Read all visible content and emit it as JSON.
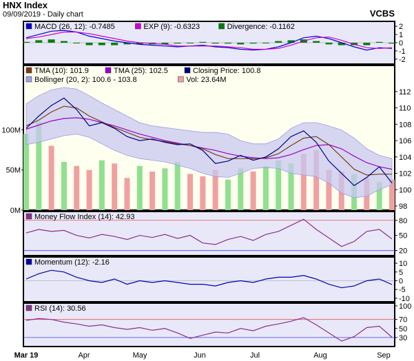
{
  "header": {
    "title": "HNX Index",
    "subtitle": "09/09/2019 - Daily chart",
    "brand": "VCBS"
  },
  "colors": {
    "tma10": "#7a3b1b",
    "tma25": "#9900cc",
    "close": "#000080",
    "bollinger_fill": "#c8c8f0",
    "bollinger_line": "#9a9ae6",
    "vol_up": "#90e090",
    "vol_down": "#f0a0a0",
    "macd": "#0000cc",
    "signal": "#cc00cc",
    "divergence": "#008000",
    "mfi": "#8b2e8b",
    "momentum": "#0000aa",
    "rsi": "#8b2e8b",
    "overbought": "#e05050",
    "oversold": "#4040e0",
    "panel_bg": "#e8e8f8",
    "price_bg": "#fffff0"
  },
  "chart_data": [
    {
      "type": "line",
      "panel": "macd",
      "legend": [
        {
          "label": "MACD (26, 12): -0.7485",
          "color": "#0000cc"
        },
        {
          "label": "EXP (9): -0.6323",
          "color": "#cc00cc"
        },
        {
          "label": "Divergence: -0.1162",
          "color": "#008000"
        }
      ],
      "yticks": [
        2,
        1,
        0,
        -1,
        -2
      ],
      "ylim": [
        -2.6,
        2.6
      ],
      "macd": [
        0.6,
        1.0,
        1.4,
        1.5,
        1.3,
        0.8,
        0.5,
        0.2,
        0.0,
        -0.2,
        -0.3,
        -0.4,
        -0.5,
        -0.4,
        -0.3,
        -0.5,
        -0.6,
        -0.8,
        -0.9,
        -0.8,
        -0.5,
        0.0,
        0.6,
        0.8,
        0.5,
        0.0,
        -0.5,
        -0.9,
        -0.6,
        -0.7
      ],
      "exp": [
        0.5,
        0.7,
        1.0,
        1.3,
        1.3,
        1.1,
        0.8,
        0.5,
        0.2,
        0.0,
        -0.1,
        -0.2,
        -0.4,
        -0.4,
        -0.4,
        -0.4,
        -0.5,
        -0.6,
        -0.8,
        -0.8,
        -0.7,
        -0.3,
        0.2,
        0.6,
        0.7,
        0.3,
        -0.2,
        -0.6,
        -0.7,
        -0.6
      ],
      "divergence": [
        0.1,
        0.3,
        0.4,
        0.2,
        0.0,
        -0.3,
        -0.3,
        -0.3,
        -0.2,
        -0.2,
        -0.2,
        -0.2,
        -0.1,
        0.0,
        0.1,
        -0.1,
        -0.1,
        -0.2,
        -0.1,
        0.0,
        0.2,
        0.3,
        0.4,
        0.2,
        -0.2,
        -0.3,
        -0.3,
        -0.3,
        0.1,
        -0.1
      ]
    },
    {
      "type": "line",
      "panel": "price",
      "legend": [
        {
          "label": "TMA (10): 101.9",
          "color": "#7a3b1b"
        },
        {
          "label": "TMA (25): 102.5",
          "color": "#9900cc"
        },
        {
          "label": "Closing Price: 100.8",
          "color": "#000080"
        },
        {
          "label": "Bollinger (20, 2): 100.6 - 103.8",
          "color": "#a0a0e8"
        },
        {
          "label": "Vol: 23.64M",
          "color": "#f0a0a0"
        }
      ],
      "yticks": [
        112,
        110,
        108,
        106,
        104,
        102,
        100,
        98
      ],
      "ylim": [
        97.5,
        113
      ],
      "vol_ticks": [
        "100M",
        "50M",
        "0M"
      ],
      "vol_max": 180,
      "close": [
        107.5,
        109,
        110.3,
        111.2,
        109.8,
        107.8,
        108.2,
        107.5,
        106.5,
        106.0,
        106.2,
        105.8,
        105.5,
        105.6,
        104.8,
        103.2,
        103.5,
        104.2,
        103.6,
        104.0,
        105.0,
        106.5,
        107.2,
        105.8,
        103.5,
        102.0,
        100.5,
        101.5,
        102.8,
        100.8
      ],
      "tma10": [
        107.8,
        108.5,
        109.5,
        110.2,
        110.0,
        109.0,
        108.3,
        107.6,
        107.0,
        106.4,
        106.1,
        105.9,
        105.6,
        105.4,
        105.0,
        104.3,
        103.8,
        103.8,
        103.8,
        103.9,
        104.4,
        105.4,
        106.3,
        106.5,
        105.5,
        104.0,
        102.5,
        101.8,
        101.9,
        101.9
      ],
      "tma25": [
        107.4,
        107.9,
        108.4,
        108.7,
        108.8,
        108.6,
        108.2,
        107.8,
        107.3,
        106.8,
        106.4,
        106.0,
        105.7,
        105.4,
        105.1,
        104.8,
        104.4,
        104.1,
        103.9,
        103.8,
        103.9,
        104.3,
        104.9,
        105.4,
        105.5,
        105.0,
        104.1,
        103.3,
        102.8,
        102.5
      ],
      "boll_upper": [
        110.5,
        111.5,
        112.2,
        112.5,
        112.3,
        111.5,
        110.6,
        109.8,
        109.0,
        108.2,
        107.8,
        107.6,
        107.4,
        107.2,
        107.0,
        107.0,
        106.8,
        106.0,
        105.6,
        105.6,
        106.2,
        107.5,
        108.2,
        108.2,
        107.8,
        107.3,
        106.3,
        105.0,
        104.2,
        103.8
      ],
      "boll_lower": [
        105.5,
        105.8,
        106.2,
        106.6,
        106.8,
        106.4,
        105.6,
        104.8,
        104.2,
        103.8,
        103.6,
        103.4,
        103.0,
        102.6,
        102.0,
        101.6,
        101.5,
        102.0,
        102.6,
        102.7,
        102.6,
        102.0,
        101.8,
        101.6,
        100.8,
        99.6,
        99.0,
        99.2,
        100.0,
        100.6
      ],
      "volume": [
        95,
        110,
        80,
        60,
        55,
        50,
        62,
        58,
        40,
        55,
        48,
        52,
        60,
        45,
        42,
        50,
        38,
        52,
        48,
        55,
        62,
        58,
        70,
        75,
        50,
        48,
        45,
        40,
        35,
        38
      ],
      "volume_up": [
        true,
        true,
        false,
        true,
        false,
        false,
        true,
        false,
        false,
        true,
        false,
        true,
        true,
        false,
        false,
        false,
        true,
        true,
        false,
        true,
        true,
        true,
        false,
        false,
        false,
        false,
        true,
        false,
        true,
        false
      ]
    },
    {
      "type": "line",
      "panel": "mfi",
      "legend": [
        {
          "label": "Money Flow Index (14): 42.93",
          "color": "#8b2e8b"
        }
      ],
      "yticks": [
        80,
        50,
        20
      ],
      "ylim": [
        10,
        92
      ],
      "hlines": [
        80,
        20
      ],
      "values": [
        55,
        62,
        58,
        60,
        50,
        45,
        52,
        48,
        42,
        50,
        46,
        52,
        44,
        50,
        35,
        32,
        42,
        48,
        40,
        52,
        58,
        70,
        82,
        62,
        45,
        28,
        38,
        58,
        62,
        42.93
      ]
    },
    {
      "type": "line",
      "panel": "momentum",
      "legend": [
        {
          "label": "Momentum (12): -2.16",
          "color": "#0000aa"
        }
      ],
      "yticks": [
        10,
        5,
        0,
        -5,
        -10
      ],
      "ylim": [
        -12,
        12
      ],
      "values": [
        1,
        4,
        6,
        5,
        2,
        0,
        -1,
        1,
        -2,
        0,
        -1,
        0,
        -1,
        -2,
        -2,
        -3,
        -1,
        0,
        -1,
        1,
        2,
        2,
        3,
        1,
        -2,
        -4,
        -3,
        0,
        1,
        -2.16
      ]
    },
    {
      "type": "line",
      "panel": "rsi",
      "legend": [
        {
          "label": "RSI (14): 30.56",
          "color": "#8b2e8b"
        }
      ],
      "yticks": [
        100,
        70,
        50,
        30
      ],
      "ylim": [
        10,
        100
      ],
      "hlines": [
        70,
        30
      ],
      "values": [
        68,
        72,
        70,
        64,
        60,
        55,
        58,
        52,
        48,
        52,
        46,
        50,
        40,
        28,
        35,
        42,
        40,
        50,
        45,
        55,
        60,
        66,
        74,
        58,
        40,
        22,
        32,
        52,
        55,
        30.56
      ]
    }
  ],
  "x_labels": [
    "Mar 19",
    "Apr",
    "May",
    "Jun",
    "Jul",
    "Aug",
    "Sep"
  ]
}
